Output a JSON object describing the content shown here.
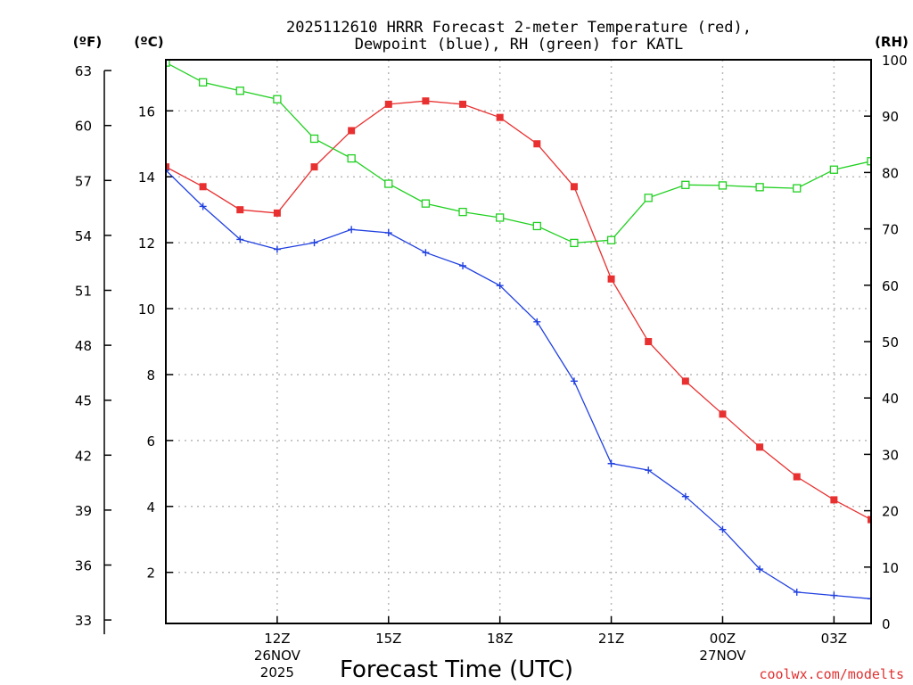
{
  "chart_data": {
    "type": "line",
    "title_line1": "2025112610 HRRR Forecast 2-meter Temperature (red),",
    "title_line2": "Dewpoint (blue), RH (green) for KATL",
    "left_unit_f": "(ºF)",
    "left_unit_c": "(ºC)",
    "right_unit": "(RH)",
    "xlabel": "Forecast Time (UTC)",
    "credit": "coolwx.com/modelts",
    "x_hours": [
      9,
      10,
      11,
      12,
      13,
      14,
      15,
      16,
      17,
      18,
      19,
      20,
      21,
      22,
      23,
      24,
      25,
      26,
      27,
      28
    ],
    "x_range": [
      9,
      28
    ],
    "x_ticks": [
      {
        "hour": 12,
        "label": "12Z",
        "date_line1": "26NOV",
        "date_line2": "2025"
      },
      {
        "hour": 15,
        "label": "15Z",
        "date_line1": "",
        "date_line2": ""
      },
      {
        "hour": 18,
        "label": "18Z",
        "date_line1": "",
        "date_line2": ""
      },
      {
        "hour": 21,
        "label": "21Z",
        "date_line1": "",
        "date_line2": ""
      },
      {
        "hour": 24,
        "label": "00Z",
        "date_line1": "27NOV",
        "date_line2": ""
      },
      {
        "hour": 27,
        "label": "03Z",
        "date_line1": "",
        "date_line2": ""
      }
    ],
    "celsius_range": [
      0.45,
      17.55
    ],
    "celsius_ticks": [
      2,
      4,
      6,
      8,
      10,
      12,
      14,
      16
    ],
    "fahrenheit_ticks": [
      33,
      36,
      39,
      42,
      45,
      48,
      51,
      54,
      57,
      60,
      63
    ],
    "rh_range": [
      0,
      100
    ],
    "rh_ticks": [
      0,
      10,
      20,
      30,
      40,
      50,
      60,
      70,
      80,
      90,
      100
    ],
    "series": [
      {
        "name": "Temperature",
        "axis": "celsius",
        "color": "#e83030",
        "marker": "filled-square",
        "values": [
          14.3,
          13.7,
          13.0,
          12.9,
          14.3,
          15.4,
          16.2,
          16.3,
          16.2,
          15.8,
          15.0,
          13.7,
          10.9,
          9.0,
          7.8,
          6.8,
          5.8,
          4.9,
          4.2,
          3.6
        ]
      },
      {
        "name": "Dewpoint",
        "axis": "celsius",
        "color": "#2040e0",
        "marker": "plus",
        "values": [
          14.2,
          13.1,
          12.1,
          11.8,
          12.0,
          12.4,
          12.3,
          11.7,
          11.3,
          10.7,
          9.6,
          7.8,
          5.3,
          5.1,
          4.3,
          3.3,
          2.1,
          1.4,
          1.3,
          1.2
        ]
      },
      {
        "name": "RH",
        "axis": "rh",
        "color": "#20d020",
        "marker": "open-square",
        "values": [
          99.5,
          96,
          94.5,
          93,
          86,
          82.5,
          78,
          74.5,
          73,
          72,
          70.5,
          67.5,
          68,
          75.5,
          77.8,
          77.7,
          77.4,
          77.2,
          80.5,
          82
        ]
      }
    ]
  }
}
